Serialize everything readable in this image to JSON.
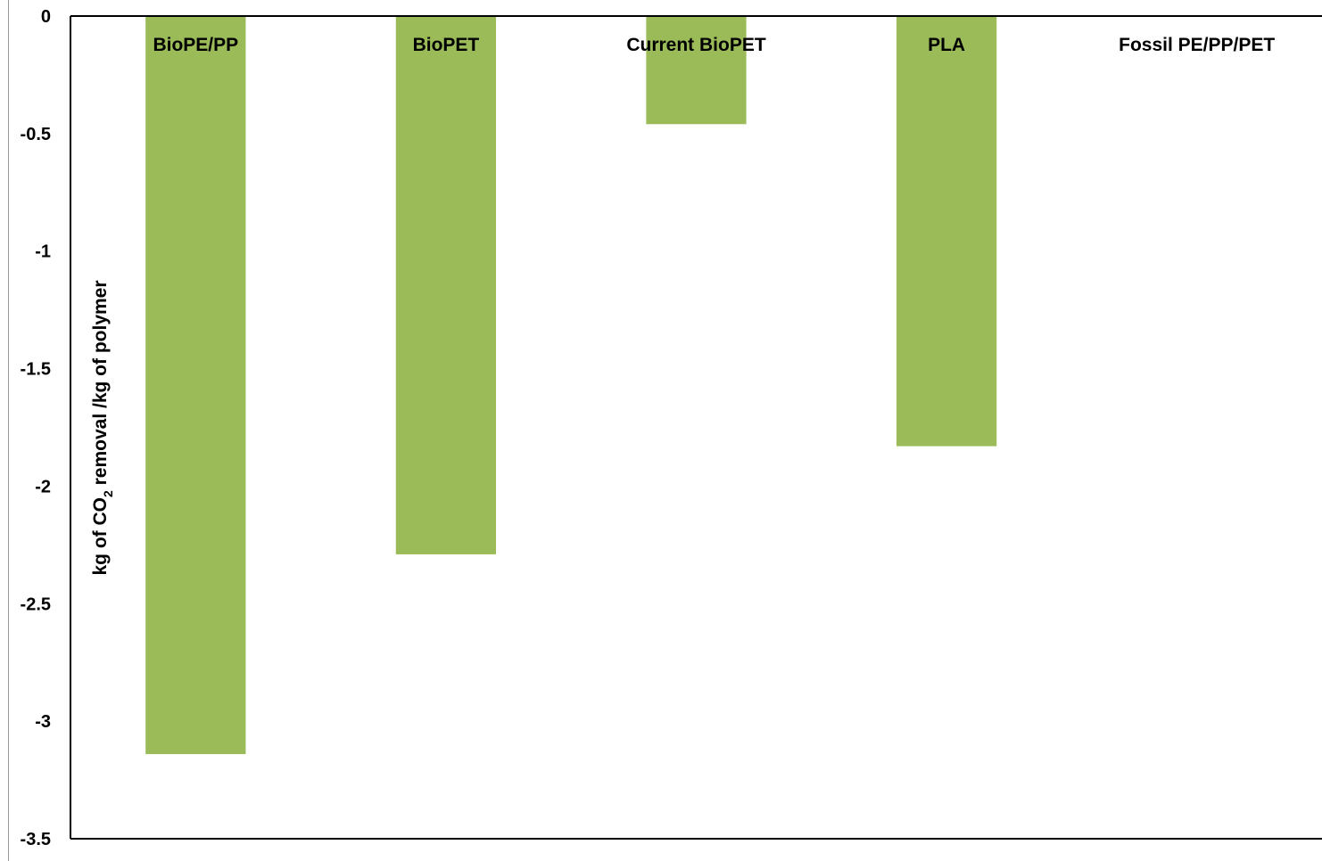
{
  "chart_data": {
    "type": "bar",
    "categories": [
      "BioPE/PP",
      "BioPET",
      "Current BioPET",
      "PLA",
      "Fossil PE/PP/PET"
    ],
    "values": [
      -3.14,
      -2.29,
      -0.46,
      -1.83,
      0
    ],
    "ylabel": {
      "prefix": "kg of CO",
      "subscript": "2",
      "suffix": " removal /kg of polymer"
    },
    "ylim": [
      -3.5,
      0
    ],
    "yticks": [
      0,
      -0.5,
      -1,
      -1.5,
      -2,
      -2.5,
      -3,
      -3.5
    ],
    "ytick_labels": [
      "0",
      "-0.5",
      "-1",
      "-1.5",
      "-2",
      "-2.5",
      "-3",
      "-3.5"
    ],
    "grid": false,
    "bar_color": "#9BBB59"
  }
}
